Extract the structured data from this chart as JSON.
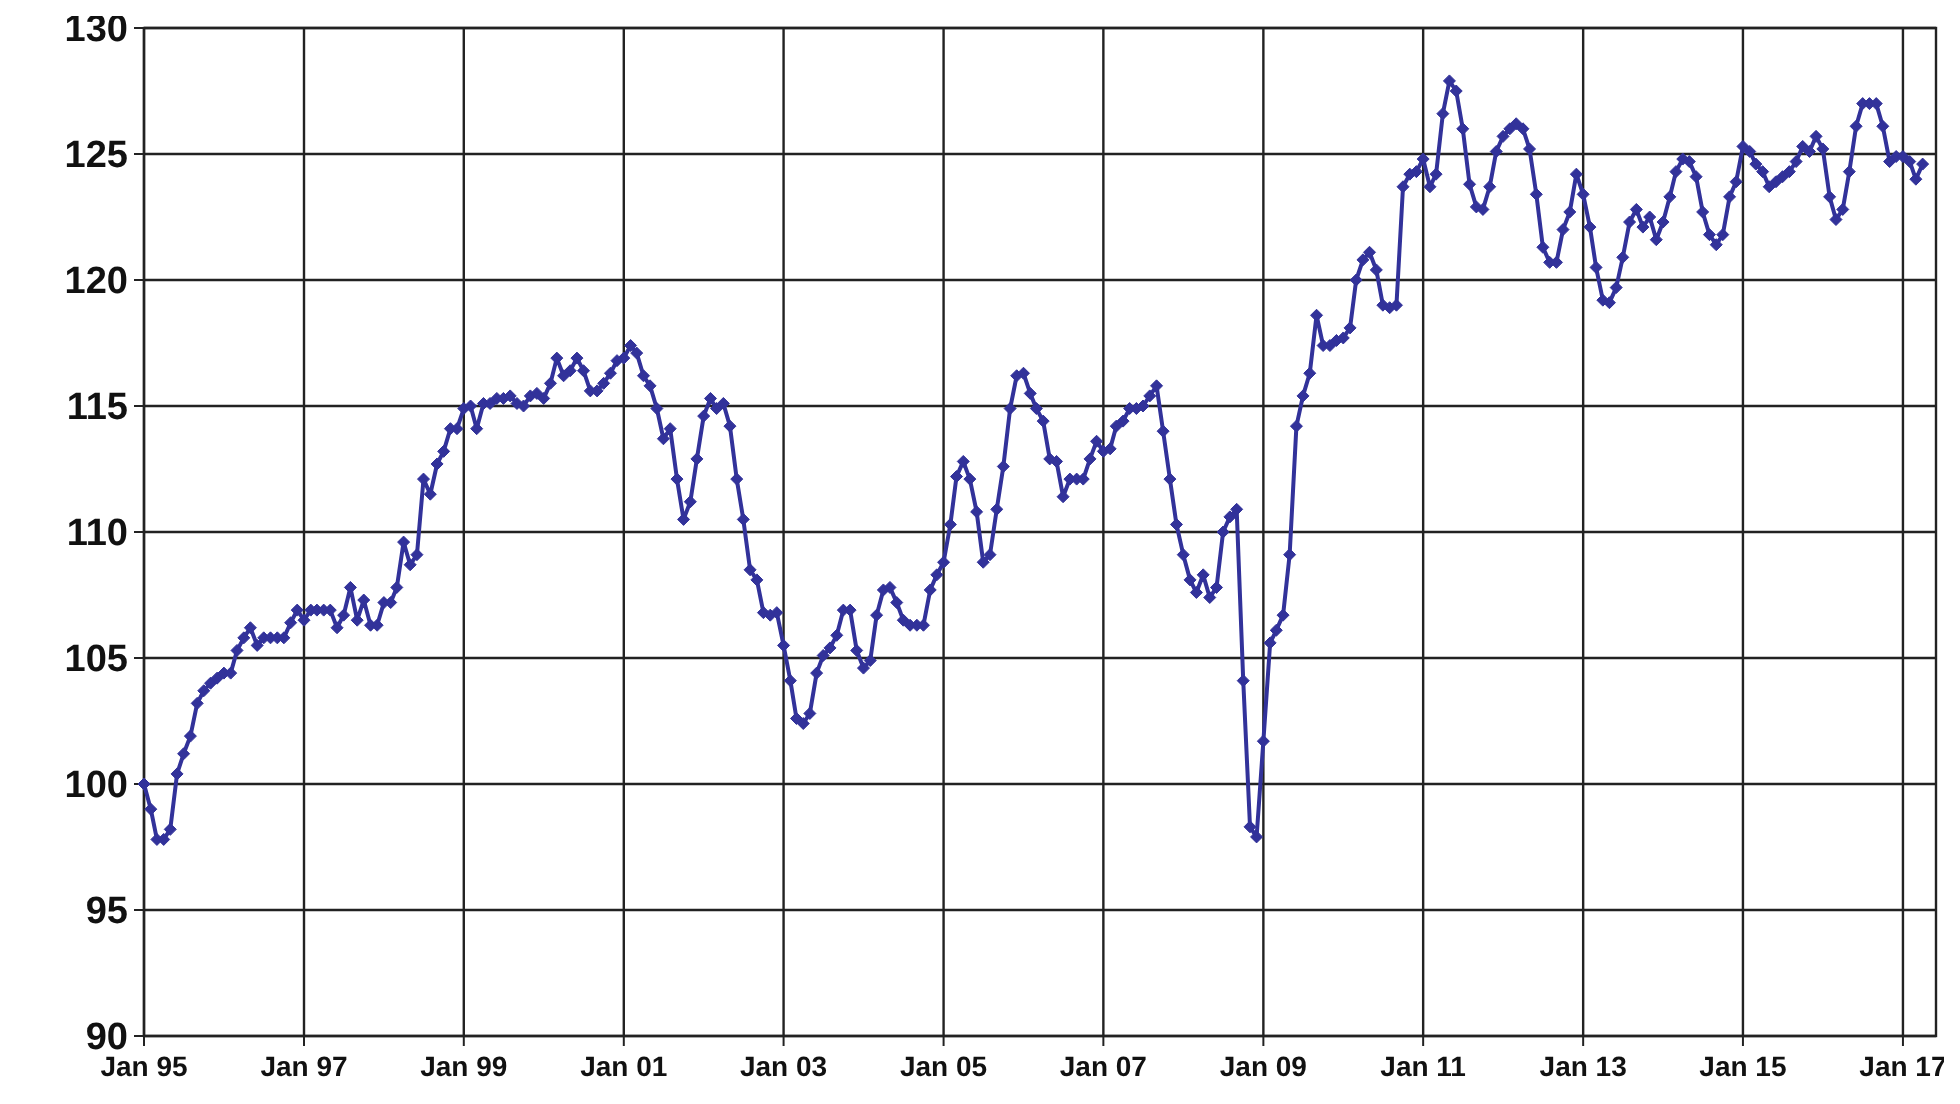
{
  "chart_data": {
    "type": "line",
    "xlim": [
      "1995-01",
      "2017-06"
    ],
    "ylim": [
      90,
      130
    ],
    "xticks": [
      {
        "value": "1995-01",
        "label": "Jan 95"
      },
      {
        "value": "1997-01",
        "label": "Jan 97"
      },
      {
        "value": "1999-01",
        "label": "Jan 99"
      },
      {
        "value": "2001-01",
        "label": "Jan 01"
      },
      {
        "value": "2003-01",
        "label": "Jan 03"
      },
      {
        "value": "2005-01",
        "label": "Jan 05"
      },
      {
        "value": "2007-01",
        "label": "Jan 07"
      },
      {
        "value": "2009-01",
        "label": "Jan 09"
      },
      {
        "value": "2011-01",
        "label": "Jan 11"
      },
      {
        "value": "2013-01",
        "label": "Jan 13"
      },
      {
        "value": "2015-01",
        "label": "Jan 15"
      },
      {
        "value": "2017-01",
        "label": "Jan 17"
      }
    ],
    "yticks": [
      90,
      95,
      100,
      105,
      110,
      115,
      120,
      125,
      130
    ],
    "grid": true,
    "marker": "diamond",
    "line_style": "solid",
    "series": [
      {
        "color": "#32329a",
        "x": [
          "1995-01",
          "1995-02",
          "1995-03",
          "1995-04",
          "1995-05",
          "1995-06",
          "1995-07",
          "1995-08",
          "1995-09",
          "1995-10",
          "1995-11",
          "1995-12",
          "1996-01",
          "1996-02",
          "1996-03",
          "1996-04",
          "1996-05",
          "1996-06",
          "1996-07",
          "1996-08",
          "1996-09",
          "1996-10",
          "1996-11",
          "1996-12",
          "1997-01",
          "1997-02",
          "1997-03",
          "1997-04",
          "1997-05",
          "1997-06",
          "1997-07",
          "1997-08",
          "1997-09",
          "1997-10",
          "1997-11",
          "1997-12",
          "1998-01",
          "1998-02",
          "1998-03",
          "1998-04",
          "1998-05",
          "1998-06",
          "1998-07",
          "1998-08",
          "1998-09",
          "1998-10",
          "1998-11",
          "1998-12",
          "1999-01",
          "1999-02",
          "1999-03",
          "1999-04",
          "1999-05",
          "1999-06",
          "1999-07",
          "1999-08",
          "1999-09",
          "1999-10",
          "1999-11",
          "1999-12",
          "2000-01",
          "2000-02",
          "2000-03",
          "2000-04",
          "2000-05",
          "2000-06",
          "2000-07",
          "2000-08",
          "2000-09",
          "2000-10",
          "2000-11",
          "2000-12",
          "2001-01",
          "2001-02",
          "2001-03",
          "2001-04",
          "2001-05",
          "2001-06",
          "2001-07",
          "2001-08",
          "2001-09",
          "2001-10",
          "2001-11",
          "2001-12",
          "2002-01",
          "2002-02",
          "2002-03",
          "2002-04",
          "2002-05",
          "2002-06",
          "2002-07",
          "2002-08",
          "2002-09",
          "2002-10",
          "2002-11",
          "2002-12",
          "2003-01",
          "2003-02",
          "2003-03",
          "2003-04",
          "2003-05",
          "2003-06",
          "2003-07",
          "2003-08",
          "2003-09",
          "2003-10",
          "2003-11",
          "2003-12",
          "2004-01",
          "2004-02",
          "2004-03",
          "2004-04",
          "2004-05",
          "2004-06",
          "2004-07",
          "2004-08",
          "2004-09",
          "2004-10",
          "2004-11",
          "2004-12",
          "2005-01",
          "2005-02",
          "2005-03",
          "2005-04",
          "2005-05",
          "2005-06",
          "2005-07",
          "2005-08",
          "2005-09",
          "2005-10",
          "2005-11",
          "2005-12",
          "2006-01",
          "2006-02",
          "2006-03",
          "2006-04",
          "2006-05",
          "2006-06",
          "2006-07",
          "2006-08",
          "2006-09",
          "2006-10",
          "2006-11",
          "2006-12",
          "2007-01",
          "2007-02",
          "2007-03",
          "2007-04",
          "2007-05",
          "2007-06",
          "2007-07",
          "2007-08",
          "2007-09",
          "2007-10",
          "2007-11",
          "2007-12",
          "2008-01",
          "2008-02",
          "2008-03",
          "2008-04",
          "2008-05",
          "2008-06",
          "2008-07",
          "2008-08",
          "2008-09",
          "2008-10",
          "2008-11",
          "2008-12",
          "2009-01",
          "2009-02",
          "2009-03",
          "2009-04",
          "2009-05",
          "2009-06",
          "2009-07",
          "2009-08",
          "2009-09",
          "2009-10",
          "2009-11",
          "2009-12",
          "2010-01",
          "2010-02",
          "2010-03",
          "2010-04",
          "2010-05",
          "2010-06",
          "2010-07",
          "2010-08",
          "2010-09",
          "2010-10",
          "2010-11",
          "2010-12",
          "2011-01",
          "2011-02",
          "2011-03",
          "2011-04",
          "2011-05",
          "2011-06",
          "2011-07",
          "2011-08",
          "2011-09",
          "2011-10",
          "2011-11",
          "2011-12",
          "2012-01",
          "2012-02",
          "2012-03",
          "2012-04",
          "2012-05",
          "2012-06",
          "2012-07",
          "2012-08",
          "2012-09",
          "2012-10",
          "2012-11",
          "2012-12",
          "2013-01",
          "2013-02",
          "2013-03",
          "2013-04",
          "2013-05",
          "2013-06",
          "2013-07",
          "2013-08",
          "2013-09",
          "2013-10",
          "2013-11",
          "2013-12",
          "2014-01",
          "2014-02",
          "2014-03",
          "2014-04",
          "2014-05",
          "2014-06",
          "2014-07",
          "2014-08",
          "2014-09",
          "2014-10",
          "2014-11",
          "2014-12",
          "2015-01",
          "2015-02",
          "2015-03",
          "2015-04",
          "2015-05",
          "2015-06",
          "2015-07",
          "2015-08",
          "2015-09",
          "2015-10",
          "2015-11",
          "2015-12",
          "2016-01",
          "2016-02",
          "2016-03",
          "2016-04",
          "2016-05",
          "2016-06",
          "2016-07",
          "2016-08",
          "2016-09",
          "2016-10",
          "2016-11",
          "2016-12",
          "2017-01",
          "2017-02",
          "2017-03",
          "2017-04"
        ],
        "values": [
          100.0,
          99.0,
          97.8,
          97.8,
          98.2,
          100.4,
          101.2,
          101.9,
          103.2,
          103.7,
          104.0,
          104.2,
          104.4,
          104.4,
          105.3,
          105.8,
          106.2,
          105.5,
          105.8,
          105.8,
          105.8,
          105.8,
          106.4,
          106.9,
          106.5,
          106.9,
          106.9,
          106.9,
          106.9,
          106.2,
          106.7,
          107.8,
          106.5,
          107.3,
          106.3,
          106.3,
          107.2,
          107.2,
          107.8,
          109.6,
          108.7,
          109.1,
          112.1,
          111.5,
          112.7,
          113.2,
          114.1,
          114.1,
          114.9,
          115.0,
          114.1,
          115.1,
          115.1,
          115.3,
          115.3,
          115.4,
          115.1,
          115.0,
          115.4,
          115.5,
          115.3,
          115.9,
          116.9,
          116.2,
          116.4,
          116.9,
          116.4,
          115.6,
          115.6,
          115.9,
          116.3,
          116.8,
          116.9,
          117.4,
          117.1,
          116.2,
          115.8,
          114.9,
          113.7,
          114.1,
          112.1,
          110.5,
          111.2,
          112.9,
          114.6,
          115.3,
          114.9,
          115.1,
          114.2,
          112.1,
          110.5,
          108.5,
          108.1,
          106.8,
          106.7,
          106.8,
          105.5,
          104.1,
          102.6,
          102.4,
          102.8,
          104.4,
          105.1,
          105.4,
          105.9,
          106.9,
          106.9,
          105.3,
          104.6,
          104.9,
          106.7,
          107.7,
          107.8,
          107.2,
          106.5,
          106.3,
          106.3,
          106.3,
          107.7,
          108.3,
          108.8,
          110.3,
          112.2,
          112.8,
          112.1,
          110.8,
          108.8,
          109.1,
          110.9,
          112.6,
          114.9,
          116.2,
          116.3,
          115.5,
          114.9,
          114.4,
          112.9,
          112.8,
          111.4,
          112.1,
          112.1,
          112.1,
          112.9,
          113.6,
          113.2,
          113.3,
          114.2,
          114.4,
          114.9,
          114.9,
          115.0,
          115.4,
          115.8,
          114.0,
          112.1,
          110.3,
          109.1,
          108.1,
          107.6,
          108.3,
          107.4,
          107.8,
          110.0,
          110.6,
          110.9,
          104.1,
          98.3,
          97.9,
          101.7,
          105.6,
          106.1,
          106.7,
          109.1,
          114.2,
          115.4,
          116.3,
          118.6,
          117.4,
          117.4,
          117.6,
          117.7,
          118.1,
          120.0,
          120.8,
          121.1,
          120.4,
          119.0,
          118.9,
          119.0,
          123.7,
          124.2,
          124.3,
          124.8,
          123.7,
          124.2,
          126.6,
          127.9,
          127.5,
          126.0,
          123.8,
          122.9,
          122.8,
          123.7,
          125.1,
          125.7,
          126.0,
          126.2,
          126.0,
          125.2,
          123.4,
          121.3,
          120.7,
          120.7,
          122.0,
          122.7,
          124.2,
          123.4,
          122.1,
          120.5,
          119.2,
          119.1,
          119.7,
          120.9,
          122.3,
          122.8,
          122.1,
          122.5,
          121.6,
          122.3,
          123.3,
          124.3,
          124.8,
          124.7,
          124.1,
          122.7,
          121.8,
          121.4,
          121.8,
          123.3,
          123.9,
          125.3,
          125.1,
          124.6,
          124.3,
          123.7,
          123.9,
          124.1,
          124.3,
          124.7,
          125.3,
          125.1,
          125.7,
          125.2,
          123.3,
          122.4,
          122.8,
          124.3,
          126.1,
          127.0,
          127.0,
          127.0,
          126.1,
          124.7,
          124.9,
          124.9,
          124.7,
          124.0,
          124.6
        ]
      }
    ]
  }
}
